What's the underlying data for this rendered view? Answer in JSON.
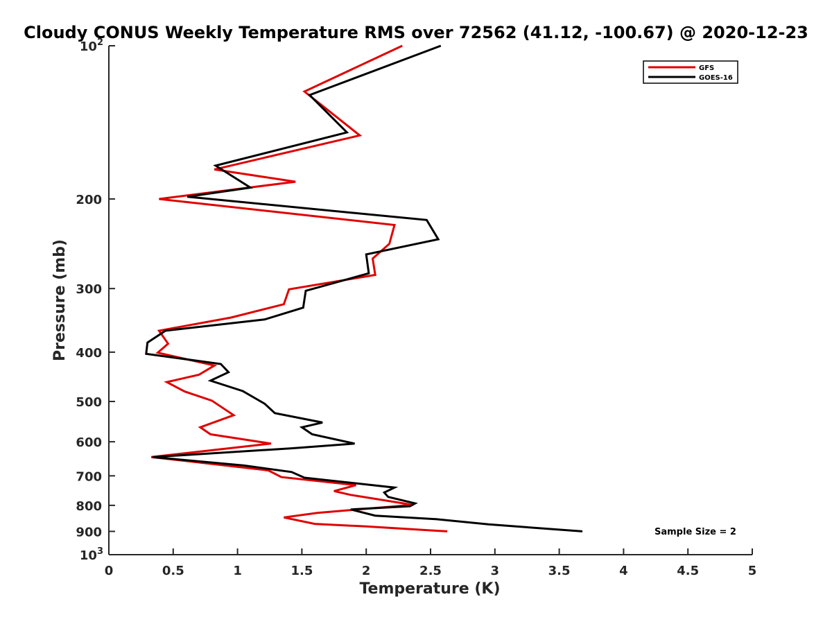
{
  "chart_data": {
    "type": "line",
    "title": "Cloudy CONUS Weekly Temperature RMS over 72562 (41.12, -100.67) @ 2020-12-23",
    "xlabel": "Temperature (K)",
    "ylabel": "Pressure (mb)",
    "xlim": [
      0,
      5
    ],
    "ylim": [
      100,
      1000
    ],
    "y_scale": "log",
    "y_reversed": true,
    "xticks": [
      "0",
      "0.5",
      "1",
      "1.5",
      "2",
      "2.5",
      "3",
      "3.5",
      "4",
      "4.5",
      "5"
    ],
    "yticks": [
      {
        "value": 100,
        "label": "10",
        "sup": "2"
      },
      {
        "value": 200,
        "label": "200",
        "sup": ""
      },
      {
        "value": 300,
        "label": "300",
        "sup": ""
      },
      {
        "value": 400,
        "label": "400",
        "sup": ""
      },
      {
        "value": 500,
        "label": "500",
        "sup": ""
      },
      {
        "value": 600,
        "label": "600",
        "sup": ""
      },
      {
        "value": 700,
        "label": "700",
        "sup": ""
      },
      {
        "value": 800,
        "label": "800",
        "sup": ""
      },
      {
        "value": 900,
        "label": "900",
        "sup": ""
      },
      {
        "value": 1000,
        "label": "10",
        "sup": "3"
      }
    ],
    "grid": false,
    "legend_position": "top-right",
    "annotation": "Sample Size = 2",
    "series": [
      {
        "name": "GFS",
        "color": "#e00000",
        "points": [
          [
            2.28,
            100
          ],
          [
            1.52,
            123
          ],
          [
            1.95,
            150
          ],
          [
            0.82,
            175
          ],
          [
            1.45,
            185
          ],
          [
            0.39,
            200
          ],
          [
            2.22,
            225
          ],
          [
            2.18,
            245
          ],
          [
            2.05,
            262
          ],
          [
            2.07,
            282
          ],
          [
            1.4,
            301
          ],
          [
            1.36,
            322
          ],
          [
            0.95,
            342
          ],
          [
            0.39,
            363
          ],
          [
            0.46,
            385
          ],
          [
            0.38,
            401
          ],
          [
            0.82,
            425
          ],
          [
            0.7,
            443
          ],
          [
            0.45,
            458
          ],
          [
            0.59,
            478
          ],
          [
            0.8,
            498
          ],
          [
            0.97,
            532
          ],
          [
            0.71,
            562
          ],
          [
            0.79,
            580
          ],
          [
            1.26,
            605
          ],
          [
            0.33,
            643
          ],
          [
            1.24,
            683
          ],
          [
            1.34,
            704
          ],
          [
            1.92,
            730
          ],
          [
            1.75,
            750
          ],
          [
            1.88,
            763
          ],
          [
            2.36,
            798
          ],
          [
            1.62,
            828
          ],
          [
            1.36,
            845
          ],
          [
            1.6,
            870
          ],
          [
            2.0,
            880
          ],
          [
            2.63,
            900
          ]
        ]
      },
      {
        "name": "GOES-16",
        "color": "#000000",
        "points": [
          [
            2.58,
            100
          ],
          [
            1.56,
            125
          ],
          [
            1.85,
            148
          ],
          [
            0.83,
            172
          ],
          [
            1.1,
            190
          ],
          [
            0.61,
            198
          ],
          [
            2.47,
            220
          ],
          [
            2.56,
            240
          ],
          [
            2.0,
            257
          ],
          [
            2.02,
            280
          ],
          [
            1.53,
            303
          ],
          [
            1.51,
            327
          ],
          [
            1.21,
            345
          ],
          [
            0.44,
            363
          ],
          [
            0.3,
            383
          ],
          [
            0.29,
            403
          ],
          [
            0.87,
            422
          ],
          [
            0.93,
            438
          ],
          [
            0.79,
            455
          ],
          [
            1.04,
            477
          ],
          [
            1.21,
            505
          ],
          [
            1.29,
            527
          ],
          [
            1.66,
            550
          ],
          [
            1.5,
            562
          ],
          [
            1.58,
            580
          ],
          [
            1.91,
            605
          ],
          [
            1.42,
            618
          ],
          [
            0.34,
            643
          ],
          [
            1.05,
            668
          ],
          [
            1.42,
            688
          ],
          [
            1.52,
            706
          ],
          [
            2.22,
            738
          ],
          [
            2.14,
            755
          ],
          [
            2.17,
            770
          ],
          [
            2.38,
            793
          ],
          [
            2.34,
            803
          ],
          [
            1.88,
            815
          ],
          [
            2.07,
            838
          ],
          [
            2.55,
            852
          ],
          [
            2.95,
            872
          ],
          [
            3.68,
            900
          ]
        ]
      }
    ]
  }
}
